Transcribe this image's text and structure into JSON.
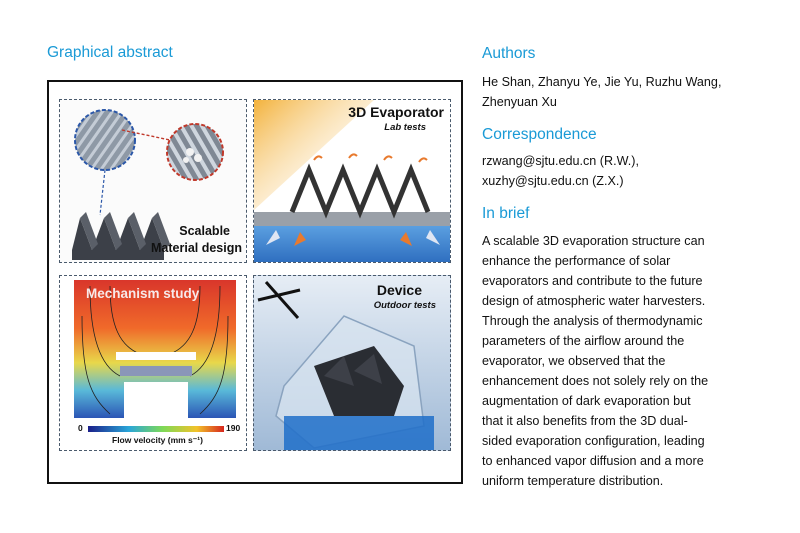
{
  "left": {
    "heading": "Graphical abstract",
    "panels": {
      "material": {
        "line1": "Scalable",
        "line2": "Material design"
      },
      "evaporator": {
        "title": "3D Evaporator",
        "subtitle": "Lab tests"
      },
      "mechanism": {
        "title": "Mechanism study",
        "scale_min": "0",
        "scale_max": "190",
        "scale_label": "Flow velocity (mm s⁻¹)"
      },
      "device": {
        "title": "Device",
        "subtitle": "Outdoor tests"
      }
    }
  },
  "right": {
    "authors_heading": "Authors",
    "authors_line1": "He Shan, Zhanyu Ye, Jie Yu, Ruzhu Wang,",
    "authors_line2": "Zhenyuan Xu",
    "correspondence_heading": "Correspondence",
    "corr_line1": "rzwang@sjtu.edu.cn (R.W.),",
    "corr_line2": "xuzhy@sjtu.edu.cn (Z.X.)",
    "brief_heading": "In brief",
    "brief_lines": [
      "A scalable 3D evaporation structure can",
      "enhance the performance of solar",
      "evaporators and contribute to the future",
      "design of atmospheric water harvesters.",
      "Through the analysis of thermodynamic",
      "parameters of the airflow around the",
      "evaporator, we observed that the",
      "enhancement does not solely rely on the",
      "augmentation of dark evaporation but",
      "that it also benefits from the 3D dual-",
      "sided evaporation configuration, leading",
      "to enhanced vapor diffusion and a more",
      "uniform temperature distribution."
    ]
  },
  "colors": {
    "heading": "#1a9ad6",
    "panel_border": "#4a5a6c",
    "box_border": "#111111"
  }
}
